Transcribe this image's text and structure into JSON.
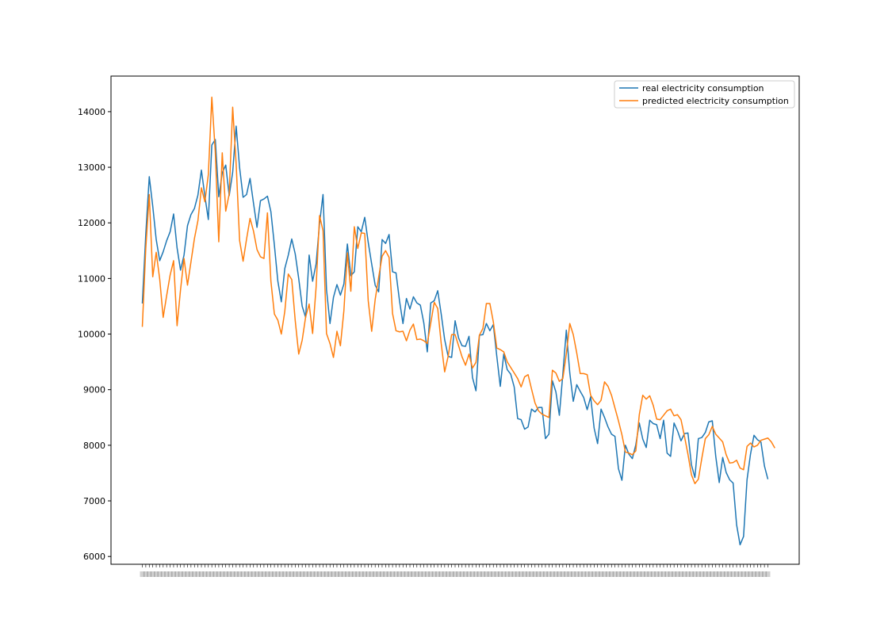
{
  "chart_data": {
    "type": "line",
    "title": "",
    "xlabel": "",
    "ylabel": "",
    "ylim": [
      5860,
      14640
    ],
    "yticks": [
      6000,
      7000,
      8000,
      9000,
      10000,
      11000,
      12000,
      13000,
      14000
    ],
    "grid": false,
    "legend_position": "top-right",
    "x_tick_labels_note": "dense overlapping date labels along the x axis",
    "series": [
      {
        "name": "real electricity consumption",
        "color": "#1f77b4",
        "values": [
          10550,
          11800,
          12830,
          12300,
          11700,
          11320,
          11480,
          11680,
          11840,
          12160,
          11550,
          11150,
          11420,
          11950,
          12150,
          12260,
          12500,
          12950,
          12480,
          12060,
          13400,
          13500,
          12470,
          12900,
          13040,
          12490,
          12910,
          13740,
          12990,
          12460,
          12510,
          12800,
          12350,
          11920,
          12400,
          12430,
          12480,
          12200,
          11600,
          10950,
          10580,
          11180,
          11420,
          11710,
          11440,
          11000,
          10500,
          10300,
          11420,
          10950,
          11260,
          11990,
          12510,
          10800,
          10190,
          10660,
          10890,
          10700,
          10900,
          11620,
          11050,
          11120,
          11930,
          11840,
          12100,
          11650,
          11260,
          10880,
          10760,
          11700,
          11630,
          11790,
          11120,
          11100,
          10600,
          10190,
          10640,
          10450,
          10670,
          10560,
          10520,
          10200,
          9680,
          10560,
          10600,
          10780,
          10360,
          9900,
          9600,
          9580,
          10240,
          9930,
          9790,
          9780,
          9960,
          9220,
          8980,
          9980,
          9990,
          10190,
          10060,
          10170,
          9600,
          9060,
          9640,
          9360,
          9280,
          9050,
          8480,
          8460,
          8290,
          8330,
          8650,
          8600,
          8680,
          8680,
          8120,
          8200,
          9160,
          8960,
          8540,
          9280,
          10070,
          9300,
          8790,
          9090,
          8970,
          8860,
          8640,
          8870,
          8310,
          8030,
          8650,
          8500,
          8330,
          8200,
          8160,
          7580,
          7370,
          8000,
          7840,
          7760,
          8010,
          8400,
          8110,
          7960,
          8450,
          8390,
          8370,
          8120,
          8450,
          7860,
          7800,
          8400,
          8260,
          8080,
          8210,
          8220,
          7650,
          7420,
          8120,
          8140,
          8230,
          8420,
          8440,
          7800,
          7330,
          7780,
          7510,
          7380,
          7320,
          6570,
          6210,
          6360,
          7380,
          7840,
          8180,
          8100,
          8060,
          7630,
          7390
        ],
        "labels": [
          "real electricity consumption"
        ]
      },
      {
        "name": "predicted electricity consumption",
        "color": "#ff7f0e",
        "values": [
          10130,
          11540,
          12510,
          11030,
          11470,
          10990,
          10300,
          10690,
          11060,
          11320,
          10150,
          10800,
          11360,
          10880,
          11300,
          11720,
          12040,
          12630,
          12380,
          12870,
          14260,
          13270,
          11660,
          13260,
          12210,
          12520,
          14080,
          13060,
          11680,
          11310,
          11710,
          12080,
          11850,
          11520,
          11390,
          11360,
          12180,
          10950,
          10360,
          10250,
          10000,
          10410,
          11080,
          10980,
          10240,
          9640,
          9890,
          10310,
          10540,
          10010,
          10840,
          12130,
          11860,
          10010,
          9830,
          9580,
          10050,
          9790,
          10420,
          11460,
          10770,
          11930,
          11540,
          11820,
          11810,
          10600,
          10050,
          10620,
          11020,
          11400,
          11500,
          11380,
          10370,
          10060,
          10040,
          10050,
          9880,
          10070,
          10180,
          9900,
          9910,
          9880,
          9830,
          10200,
          10570,
          10460,
          9830,
          9320,
          9600,
          9990,
          9990,
          9790,
          9590,
          9440,
          9640,
          9390,
          9490,
          9980,
          10100,
          10550,
          10550,
          10220,
          9750,
          9720,
          9680,
          9500,
          9400,
          9300,
          9200,
          9050,
          9230,
          9270,
          9010,
          8760,
          8620,
          8560,
          8530,
          8500,
          9350,
          9300,
          9150,
          9200,
          9640,
          10190,
          9990,
          9660,
          9290,
          9290,
          9270,
          8900,
          8800,
          8730,
          8810,
          9140,
          9060,
          8900,
          8670,
          8440,
          8190,
          7880,
          7860,
          7830,
          7900,
          8550,
          8900,
          8830,
          8890,
          8720,
          8470,
          8460,
          8540,
          8620,
          8650,
          8530,
          8550,
          8460,
          8160,
          7840,
          7470,
          7310,
          7390,
          7770,
          8120,
          8190,
          8340,
          8200,
          8130,
          8060,
          7830,
          7680,
          7690,
          7730,
          7590,
          7560,
          7980,
          8040,
          7970,
          8000,
          8090,
          8110,
          8130,
          8060,
          7950
        ]
      }
    ]
  }
}
